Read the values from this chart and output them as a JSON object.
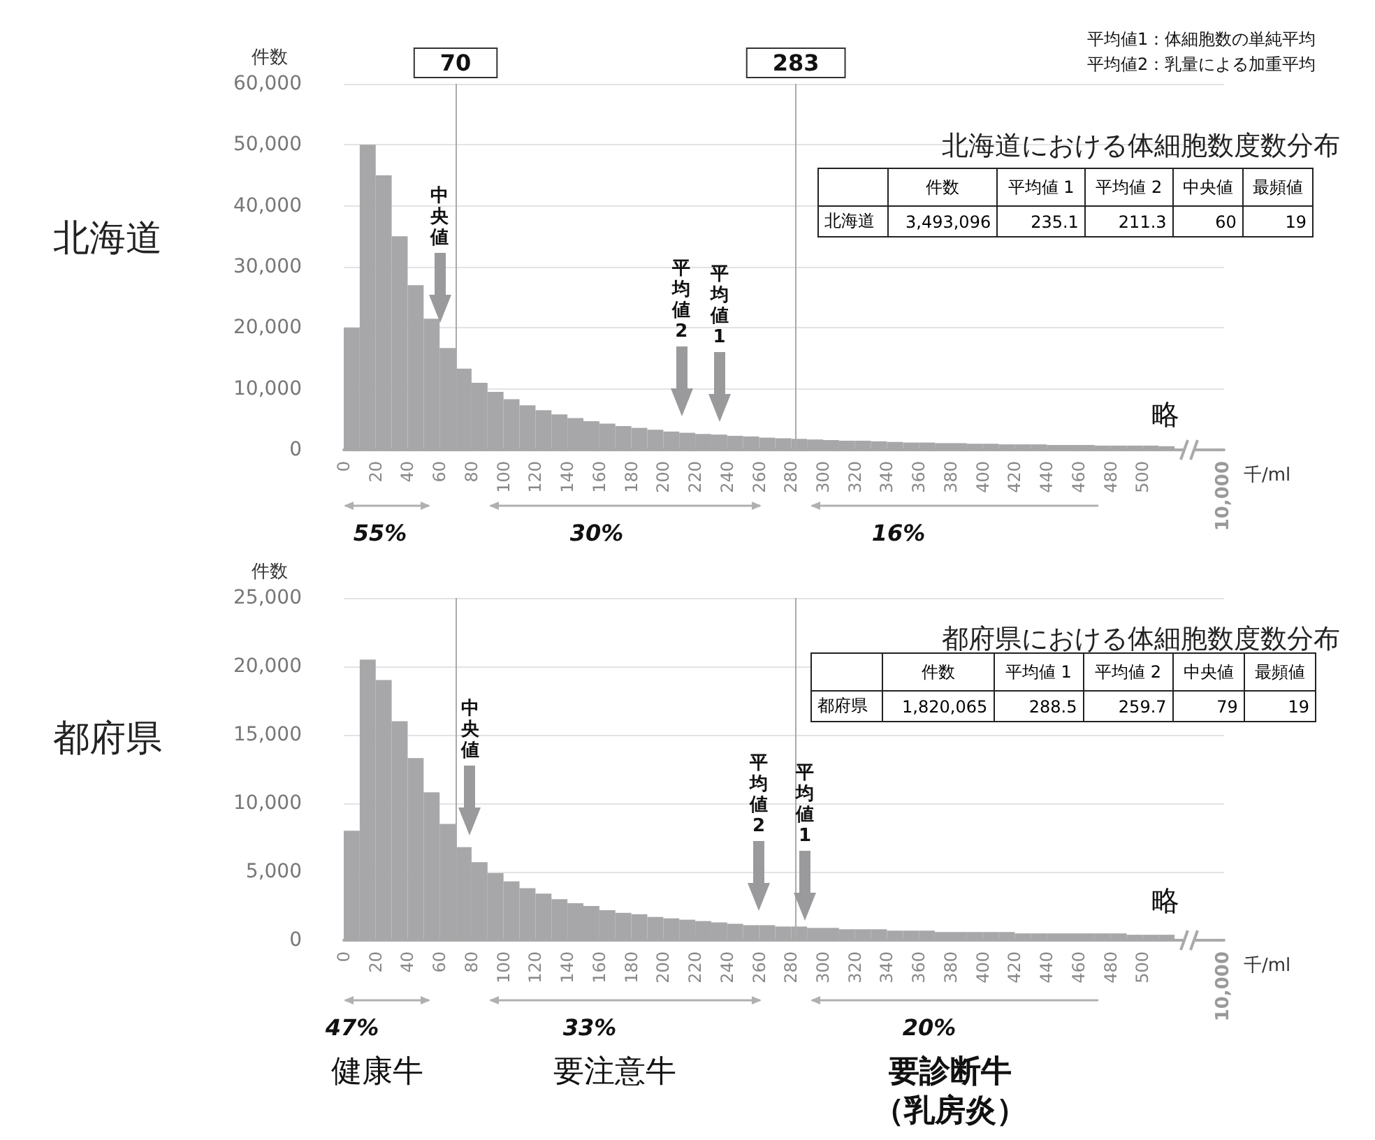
{
  "chart_data": [
    {
      "type": "histogram",
      "title": "北海道における体細胞数度数分布",
      "subtitle": "北海道",
      "ylabel": "件数",
      "xlabel": "千/ml",
      "color": "#a7a7aa",
      "grid": "y",
      "bins": [
        0,
        10,
        20,
        30,
        40,
        50,
        60,
        70,
        80,
        90,
        100,
        110,
        120,
        130,
        140,
        150,
        160,
        170,
        180,
        190,
        200,
        210,
        220,
        230,
        240,
        250,
        260,
        270,
        280,
        290,
        300,
        310,
        320,
        330,
        340,
        350,
        360,
        370,
        380,
        390,
        400,
        410,
        420,
        430,
        440,
        450,
        460,
        470,
        480,
        490,
        500,
        510,
        520
      ],
      "values": [
        20000,
        50000,
        45000,
        35000,
        27000,
        21500,
        16700,
        13300,
        11000,
        9500,
        8300,
        7300,
        6500,
        5800,
        5200,
        4700,
        4300,
        3900,
        3600,
        3300,
        3000,
        2800,
        2600,
        2500,
        2300,
        2200,
        2000,
        1900,
        1800,
        1700,
        1600,
        1500,
        1500,
        1400,
        1300,
        1200,
        1200,
        1100,
        1100,
        1000,
        1000,
        900,
        900,
        900,
        800,
        800,
        800,
        700,
        700,
        700,
        700,
        600
      ],
      "xlim": [
        0,
        551
      ],
      "xticks": [
        0,
        20,
        40,
        60,
        80,
        100,
        120,
        140,
        160,
        180,
        200,
        220,
        240,
        260,
        280,
        300,
        320,
        340,
        360,
        380,
        400,
        420,
        440,
        460,
        480,
        500
      ],
      "ylim": [
        0,
        60000
      ],
      "yticks": [
        0,
        {
          "value": 10000,
          "label": "10,000"
        },
        {
          "value": 20000,
          "label": "20,000"
        },
        {
          "value": 30000,
          "label": "30,000"
        },
        {
          "value": 40000,
          "label": "40,000"
        },
        {
          "value": 50000,
          "label": "50,000"
        },
        {
          "value": 60000,
          "label": "60,000"
        }
      ],
      "ref_lines": [
        {
          "axis": "x",
          "value": 70,
          "label": "70",
          "color": "#aaaaaa"
        },
        {
          "axis": "x",
          "value": 283,
          "label": "283",
          "color": "#aaaaaa"
        }
      ],
      "annotations": [
        "平均値1：体細胞数の単純平均",
        "平均値2：乳量による加重平均",
        "中央値",
        "平均値2",
        "平均値1",
        "略",
        "55%",
        "30%",
        "16%",
        "10,000"
      ]
    },
    {
      "type": "other",
      "categories": [
        "件数",
        "平均値 1",
        "平均値 2",
        "中央値",
        "最頻値"
      ],
      "y_categories": [
        "北海道"
      ],
      "cell_labels": [
        [
          "3,493,096",
          "235.1",
          "211.3",
          "60",
          "19"
        ]
      ]
    },
    {
      "type": "histogram",
      "title": "都府県における体細胞数度数分布",
      "subtitle": "都府県",
      "ylabel": "件数",
      "xlabel": "千/ml",
      "color": "#a7a7aa",
      "grid": "y",
      "bins": [
        0,
        10,
        20,
        30,
        40,
        50,
        60,
        70,
        80,
        90,
        100,
        110,
        120,
        130,
        140,
        150,
        160,
        170,
        180,
        190,
        200,
        210,
        220,
        230,
        240,
        250,
        260,
        270,
        280,
        290,
        300,
        310,
        320,
        330,
        340,
        350,
        360,
        370,
        380,
        390,
        400,
        410,
        420,
        430,
        440,
        450,
        460,
        470,
        480,
        490,
        500,
        510,
        520
      ],
      "values": [
        8000,
        20500,
        19000,
        16000,
        13300,
        10800,
        8500,
        6800,
        5700,
        4900,
        4300,
        3800,
        3400,
        3000,
        2700,
        2500,
        2200,
        2000,
        1900,
        1700,
        1600,
        1500,
        1400,
        1300,
        1200,
        1100,
        1100,
        1000,
        1000,
        900,
        900,
        800,
        800,
        800,
        700,
        700,
        700,
        600,
        600,
        600,
        600,
        600,
        500,
        500,
        500,
        500,
        500,
        500,
        500,
        400,
        400,
        400
      ],
      "xlim": [
        0,
        551
      ],
      "xticks": [
        0,
        20,
        40,
        60,
        80,
        100,
        120,
        140,
        160,
        180,
        200,
        220,
        240,
        260,
        280,
        300,
        320,
        340,
        360,
        380,
        400,
        420,
        440,
        460,
        480,
        500
      ],
      "ylim": [
        0,
        25000
      ],
      "yticks": [
        0,
        {
          "value": 5000,
          "label": "5,000"
        },
        {
          "value": 10000,
          "label": "10,000"
        },
        {
          "value": 15000,
          "label": "15,000"
        },
        {
          "value": 20000,
          "label": "20,000"
        },
        {
          "value": 25000,
          "label": "25,000"
        }
      ],
      "ref_lines": [
        {
          "axis": "x",
          "value": 70,
          "color": "#aaaaaa"
        },
        {
          "axis": "x",
          "value": 283,
          "color": "#aaaaaa"
        }
      ],
      "annotations": [
        "中央値",
        "平均値2",
        "平均値1",
        "略",
        "47%",
        "33%",
        "20%",
        "10,000",
        "健康牛",
        "要注意牛",
        "要診断牛",
        "（乳房炎）"
      ]
    },
    {
      "type": "other",
      "categories": [
        "件数",
        "平均値 1",
        "平均値 2",
        "中央値",
        "最頻値"
      ],
      "y_categories": [
        "都府県"
      ],
      "cell_labels": [
        [
          "1,820,065",
          "288.5",
          "259.7",
          "79",
          "19"
        ]
      ]
    }
  ]
}
